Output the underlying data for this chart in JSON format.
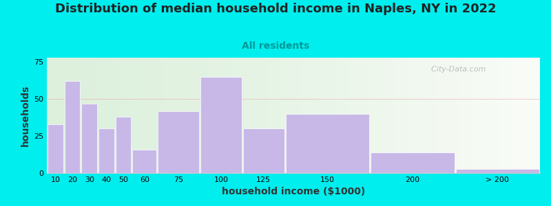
{
  "title": "Distribution of median household income in Naples, NY in 2022",
  "subtitle": "All residents",
  "xlabel": "household income ($1000)",
  "ylabel": "households",
  "background_outer": "#00EEEE",
  "bar_color": "#c8b8e8",
  "categories": [
    "10",
    "20",
    "30",
    "40",
    "50",
    "60",
    "75",
    "100",
    "125",
    "150",
    "200",
    "> 200"
  ],
  "values": [
    33,
    62,
    47,
    30,
    38,
    16,
    42,
    65,
    30,
    40,
    14,
    3
  ],
  "bar_widths": [
    10,
    10,
    10,
    10,
    10,
    15,
    25,
    25,
    25,
    50,
    50,
    50
  ],
  "bar_lefts": [
    10,
    20,
    30,
    40,
    50,
    60,
    75,
    100,
    125,
    150,
    200,
    250
  ],
  "ylim": [
    0,
    78
  ],
  "yticks": [
    0,
    25,
    50,
    75
  ],
  "title_fontsize": 13,
  "subtitle_fontsize": 10,
  "axis_label_fontsize": 10,
  "tick_fontsize": 8,
  "watermark": "City-Data.com",
  "title_color": "#222222",
  "subtitle_color": "#009999",
  "axis_label_color": "#333333"
}
